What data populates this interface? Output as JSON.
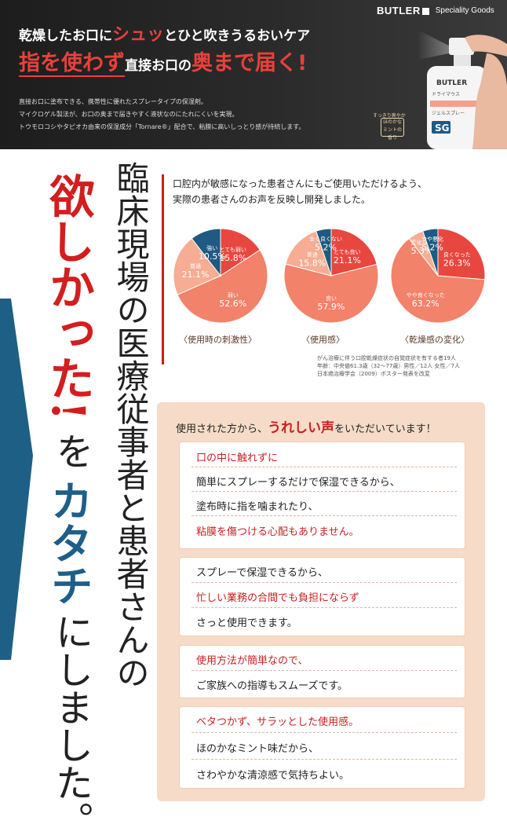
{
  "hero": {
    "brand": "BUTLER",
    "brand_sub": "Speciality Goods",
    "headline1_a": "乾燥したお口に",
    "headline1_b": "シュッ",
    "headline1_c": "とひと吹きうるおいケア",
    "headline2_a": "指を使わず",
    "headline2_b": "直接お口の",
    "headline2_c": "奥まで届く!",
    "desc": [
      "直接お口に塗布できる、携帯性に優れたスプレータイプの保湿剤。",
      "マイクロゲル製法が、お口の奥まで届きやすく液状なのにたれにくいを実現。",
      "トウモロコシやタピオカ由来の保湿成分「Tornare®」配合で、粘膜に高いしっとり感が持続します。"
    ],
    "tag1": "すっきり爽やか",
    "tag2": "ほのかな ミントの香り",
    "bottle_label": "BUTLER",
    "bottle_text1": "ドライマウス",
    "bottle_text2": "ジェルスプレー",
    "bottle_sg": "SG"
  },
  "left_vertical": {
    "red": "欲しかった!",
    "black1": "を",
    "blue": "カタチ",
    "black2": "にしました。",
    "col2": "臨床現場の医療従事者と患者さんの"
  },
  "survey": {
    "intro": [
      "口腔内が敏感になった患者さんにもご使用いただけるよう、",
      "実際の患者さんのお声を反映し開発しました。"
    ],
    "note": [
      "がん治療に伴う口腔乾燥症状の自覚症状を有する者19人",
      "年齢：中央値61.3歳（32〜77歳）男性／12人 女性／7人",
      "日本癌治療学会（2009）ポスター発表を改変"
    ]
  },
  "chart_data": [
    {
      "type": "pie",
      "title": "〈使用時の刺激性〉",
      "categories": [
        "とても弱い",
        "弱い",
        "普通",
        "強い"
      ],
      "values": [
        15.8,
        52.6,
        21.1,
        10.5
      ],
      "colors": [
        "#e8473f",
        "#f2826a",
        "#f6ad93",
        "#1e5a82"
      ]
    },
    {
      "type": "pie",
      "title": "〈使用感〉",
      "categories": [
        "とても良い",
        "良い",
        "普通",
        "全く良くない"
      ],
      "values": [
        21.1,
        57.9,
        15.8,
        5.2
      ],
      "colors": [
        "#e8473f",
        "#f2826a",
        "#f6ad93",
        "#1e5a82"
      ]
    },
    {
      "type": "pie",
      "title": "〈乾燥感の変化〉",
      "categories": [
        "良くなった",
        "やや良くなった",
        "変化なし",
        "やや悪化"
      ],
      "values": [
        26.3,
        63.2,
        5.3,
        5.2
      ],
      "colors": [
        "#e8473f",
        "#f2826a",
        "#f6ad93",
        "#1e5a82"
      ]
    }
  ],
  "voices": {
    "title_a": "使用された方から、",
    "title_b": "うれしい声",
    "title_c": "をいただいています！",
    "cards": [
      {
        "lines": [
          {
            "text": "口の中に触れずに",
            "color": "red"
          },
          {
            "text": "簡単にスプレーするだけで保湿できるから、",
            "color": "black"
          },
          {
            "text": "塗布時に指を噛まれたり、",
            "color": "black"
          },
          {
            "text": "粘膜を傷つける心配もありません。",
            "color": "red"
          }
        ]
      },
      {
        "lines": [
          {
            "text": "スプレーで保湿できるから、",
            "color": "black"
          },
          {
            "text": "忙しい業務の合間でも負担にならず",
            "color": "red"
          },
          {
            "text": "さっと使用できます。",
            "color": "black"
          }
        ]
      },
      {
        "lines": [
          {
            "text": "使用方法が簡単なので、",
            "color": "red"
          },
          {
            "text": "ご家族への指導もスムーズです。",
            "color": "black"
          }
        ]
      },
      {
        "lines": [
          {
            "text": "ベタつかず、サラッとした使用感。",
            "color": "red"
          },
          {
            "text": "ほのかなミント味だから、",
            "color": "black"
          },
          {
            "text": "さわやかな清涼感で気持ちよい。",
            "color": "black"
          }
        ]
      }
    ]
  }
}
